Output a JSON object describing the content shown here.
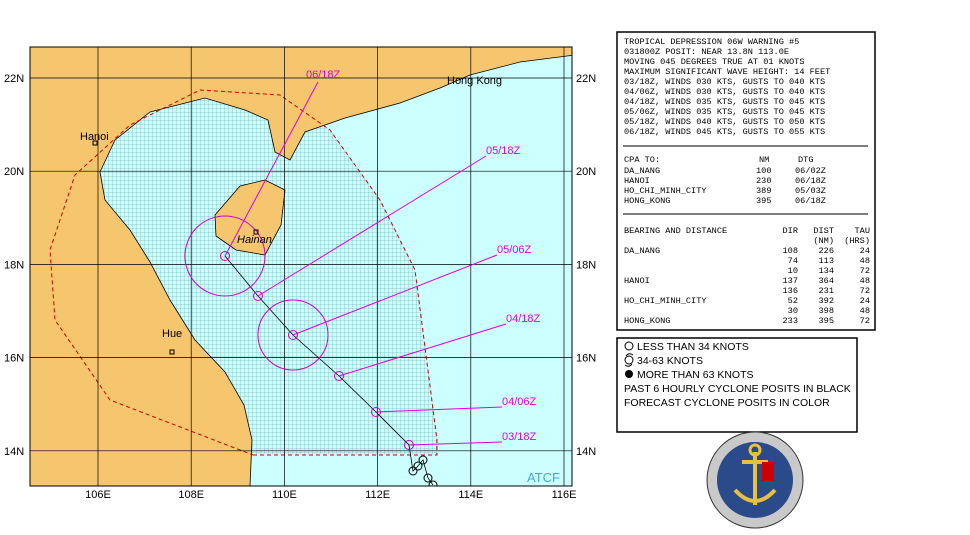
{
  "map": {
    "lat_labels": [
      "22N",
      "20N",
      "18N",
      "16N",
      "14N"
    ],
    "lon_labels": [
      "106E",
      "108E",
      "110E",
      "112E",
      "114E",
      "116E"
    ],
    "places": [
      "Hanoi",
      "Hue",
      "Hainan",
      "Hong Kong"
    ],
    "forecast_labels": [
      "03/18Z",
      "04/06Z",
      "04/18Z",
      "05/06Z",
      "05/18Z",
      "06/18Z"
    ],
    "source": "ATCF"
  },
  "warning": {
    "lines": [
      "TROPICAL DEPRESSION 06W WARNING #5",
      "031800Z POSIT: NEAR 13.8N 113.0E",
      "MOVING 045 DEGREES TRUE AT 01 KNOTS",
      "MAXIMUM SIGNIFICANT WAVE HEIGHT: 14 FEET",
      "03/18Z, WINDS 030 KTS, GUSTS TO 040 KTS",
      "04/06Z, WINDS 030 KTS, GUSTS TO 040 KTS",
      "04/18Z, WINDS 035 KTS, GUSTS TO 045 KTS",
      "05/06Z, WINDS 035 KTS, GUSTS TO 045 KTS",
      "05/18Z, WINDS 040 KTS, GUSTS TO 050 KTS",
      "06/18Z, WINDS 045 KTS, GUSTS TO 055 KTS"
    ]
  },
  "cpa": {
    "header": [
      "CPA TO:",
      "NM",
      "DTG"
    ],
    "rows": [
      [
        "DA_NANG",
        "100",
        "06/02Z"
      ],
      [
        "HANOI",
        "230",
        "06/18Z"
      ],
      [
        "HO_CHI_MINH_CITY",
        "389",
        "05/03Z"
      ],
      [
        "HONG_KONG",
        "395",
        "06/18Z"
      ]
    ]
  },
  "bearing": {
    "header": [
      "BEARING AND DISTANCE",
      "DIR",
      "DIST",
      "TAU"
    ],
    "units": [
      "(NM)",
      "(HRS)"
    ],
    "places": [
      {
        "place": "DA_NANG",
        "rows": [
          [
            "108",
            "226",
            "24"
          ],
          [
            "74",
            "113",
            "48"
          ],
          [
            "10",
            "134",
            "72"
          ]
        ]
      },
      {
        "place": "HANOI",
        "rows": [
          [
            "137",
            "364",
            "48"
          ],
          [
            "136",
            "231",
            "72"
          ]
        ]
      },
      {
        "place": "HO_CHI_MINH_CITY",
        "rows": [
          [
            "52",
            "392",
            "24"
          ],
          [
            "30",
            "398",
            "48"
          ]
        ]
      },
      {
        "place": "HONG_KONG",
        "rows": [
          [
            "233",
            "395",
            "72"
          ]
        ]
      }
    ]
  },
  "legend": [
    "LESS THAN 34 KNOTS",
    "34-63 KNOTS",
    "MORE THAN 63 KNOTS",
    "PAST 6 HOURLY CYCLONE POSITS IN BLACK",
    "FORECAST CYCLONE POSITS IN COLOR"
  ]
}
